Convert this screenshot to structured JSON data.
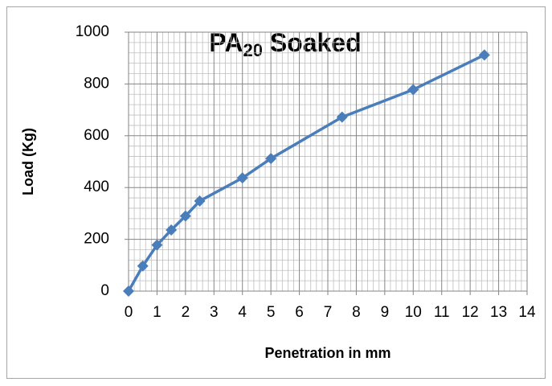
{
  "chart_data": {
    "type": "line",
    "title": [
      "PA",
      "20",
      " Soaked"
    ],
    "xlabel": "Penetration in mm",
    "ylabel": "Load (Kg)",
    "x": [
      0,
      0.5,
      1,
      1.5,
      2,
      2.5,
      4,
      5,
      7.5,
      10,
      12.5
    ],
    "series": [
      {
        "name": "Load",
        "color": "#4a7ebb",
        "values": [
          0,
          97,
          178,
          236,
          290,
          348,
          437,
          512,
          672,
          778,
          912
        ]
      }
    ],
    "xlim": [
      0,
      14
    ],
    "xticks": [
      0,
      1,
      2,
      3,
      4,
      5,
      6,
      7,
      8,
      9,
      10,
      11,
      12,
      13,
      14
    ],
    "ylim": [
      0,
      1000
    ],
    "yticks": [
      0,
      200,
      400,
      600,
      800,
      1000
    ],
    "grid": true,
    "minor_grid": true
  }
}
